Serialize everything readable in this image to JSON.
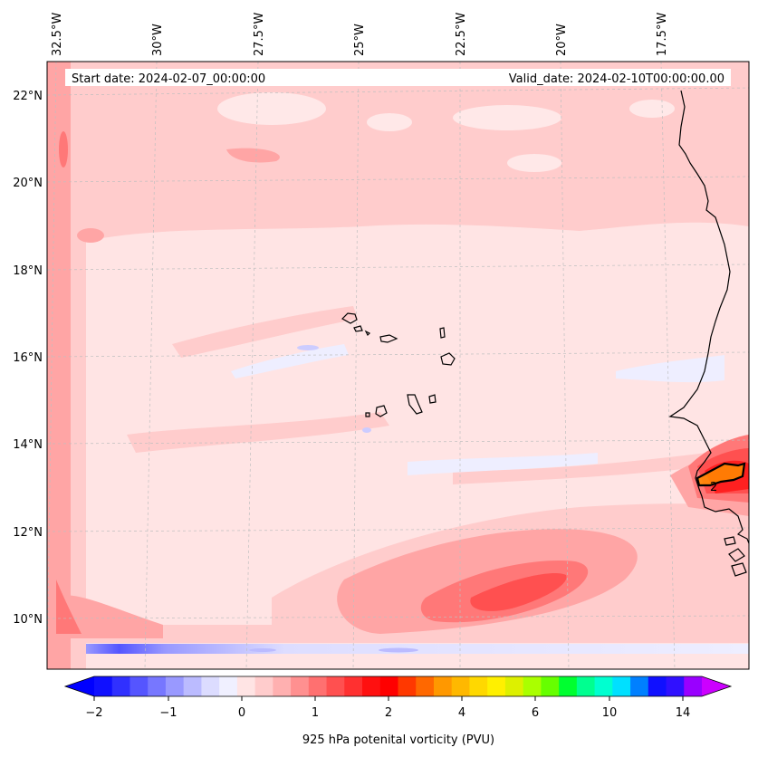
{
  "map": {
    "start_label": "Start date: 2024-02-07_00:00:00",
    "valid_label": "Valid_date: 2024-02-10T00:00:00.00",
    "lon_ticks": [
      "32.5°W",
      "30°W",
      "27.5°W",
      "25°W",
      "22.5°W",
      "20°W",
      "17.5°W"
    ],
    "lat_ticks": [
      "22°N",
      "20°N",
      "18°N",
      "16°N",
      "14°N",
      "12°N",
      "10°N"
    ],
    "contour_label": "2"
  },
  "colorbar": {
    "title": "925 hPa potenital vorticity (PVU)",
    "tick_labels": [
      "−2",
      "−1",
      "0",
      "1",
      "2",
      "4",
      "6",
      "10",
      "14"
    ],
    "colors": [
      "#1010ff",
      "#3030ff",
      "#5555ff",
      "#7777ff",
      "#9999ff",
      "#bbbbff",
      "#dcdcff",
      "#f0f0ff",
      "#ffe4e4",
      "#ffcccc",
      "#ffb0b0",
      "#ff9090",
      "#ff7070",
      "#ff5050",
      "#ff3030",
      "#ff1010",
      "#ff0000",
      "#ff3800",
      "#ff6800",
      "#ff9800",
      "#ffb800",
      "#ffd800",
      "#fff000",
      "#ddf000",
      "#aaff00",
      "#66ff00",
      "#00ff30",
      "#00ff90",
      "#00ffd0",
      "#00e0ff",
      "#0080ff",
      "#1010ff",
      "#3010ff",
      "#9900ff"
    ],
    "under_color": "#0000ff",
    "over_color": "#cc00ff"
  },
  "colors": {
    "background_fill": "#ffe4e4",
    "band_light": "#ffcccc",
    "band_mid": "#ffa5a5",
    "band_strong": "#ff7878",
    "band_core": "#ff5050",
    "negative_light": "#eeeeff",
    "negative_mid": "#aaaaff",
    "negative_strong": "#6666ff",
    "land_highlight": "#ff8c00",
    "coastline": "#000000"
  }
}
